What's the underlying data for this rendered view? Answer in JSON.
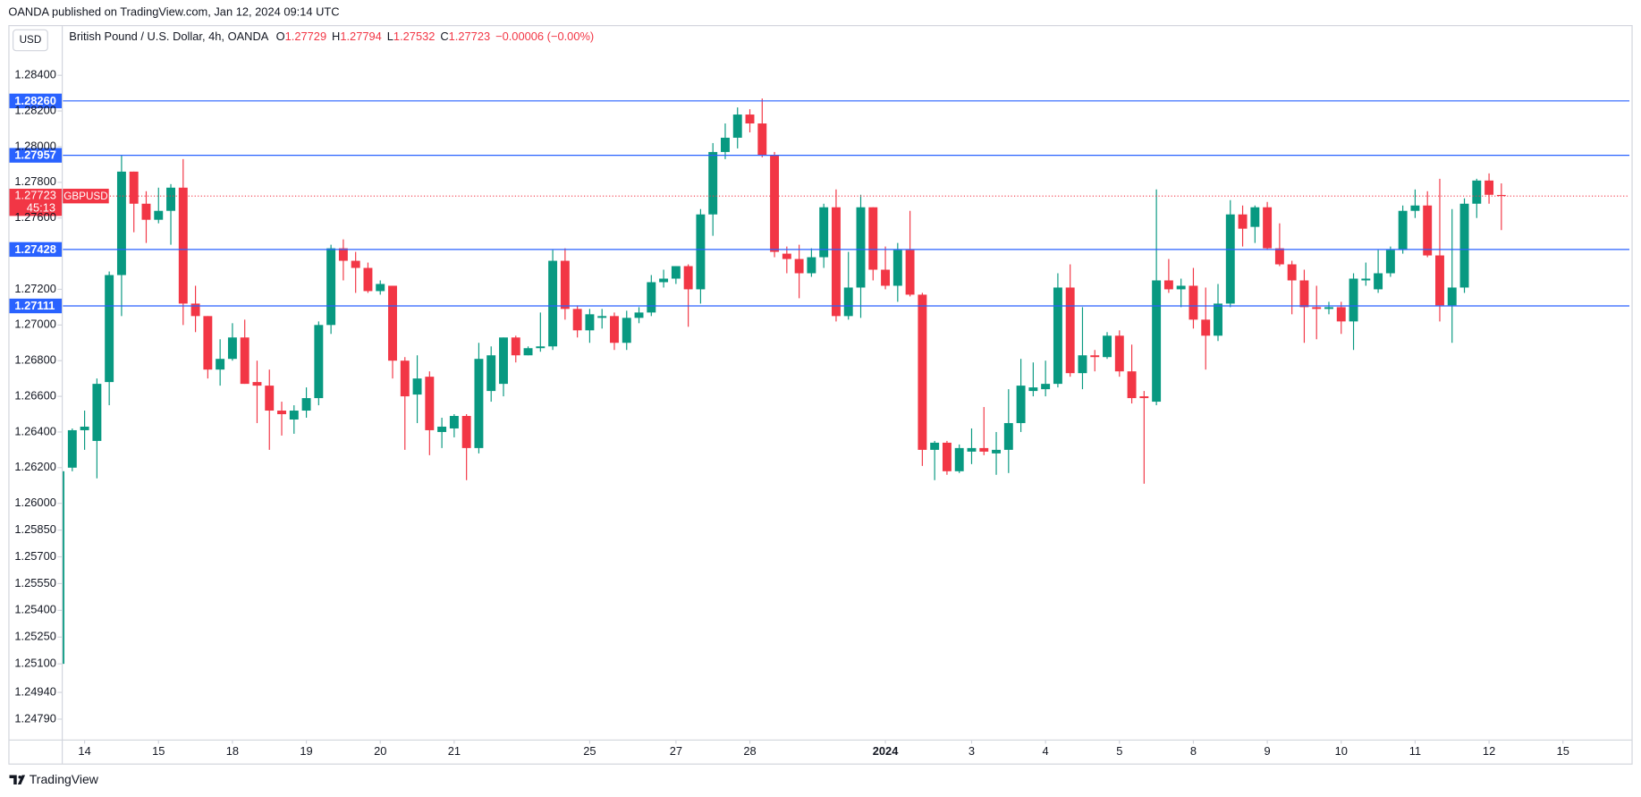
{
  "header": "OANDA published on TradingView.com, Jan 12, 2024 09:14 UTC",
  "footer": "TradingView",
  "chart_data": {
    "type": "candlestick",
    "currency": "USD",
    "symbol_description": "British Pound / U.S. Dollar, 4h, OANDA",
    "ohlc_legend": {
      "open_label": "O",
      "open": "1.27729",
      "high_label": "H",
      "high": "1.27794",
      "low_label": "L",
      "low": "1.27532",
      "close_label": "C",
      "close": "1.27723",
      "change": "−0.00006 (−0.00%)"
    },
    "up_color": "#089981",
    "down_color": "#f23645",
    "level_color": "#2962ff",
    "open": [
      1.251,
      1.262,
      1.2641,
      1.2635,
      1.2668,
      1.2728,
      1.2786,
      1.2768,
      1.2759,
      1.2764,
      1.2777,
      1.2712,
      1.2705,
      1.2675,
      1.2681,
      1.2693,
      1.2668,
      1.2666,
      1.2652,
      1.2647,
      1.2652,
      1.2659,
      1.27,
      1.2743,
      1.2736,
      1.2732,
      1.2719,
      1.2722,
      1.268,
      1.2661,
      1.2671,
      1.264,
      1.2642,
      1.2649,
      1.2631,
      1.2663,
      1.2667,
      1.2693,
      1.2683,
      1.2687,
      1.2688,
      1.2736,
      1.2709,
      1.2697,
      1.2704,
      1.2705,
      1.269,
      1.2704,
      1.2707,
      1.2724,
      1.2726,
      1.2733,
      1.272,
      1.2762,
      1.2797,
      1.2805,
      1.2818,
      1.2813,
      1.2795,
      1.274,
      1.2737,
      1.2729,
      1.2738,
      1.2766,
      1.2705,
      1.2721,
      1.2766,
      1.2731,
      1.2722,
      1.2742,
      1.2717,
      1.263,
      1.2634,
      1.2618,
      1.2629,
      1.2631,
      1.2628,
      1.263,
      1.2645,
      1.2663,
      1.2664,
      1.2667,
      1.2721,
      1.2673,
      1.2683,
      1.2682,
      1.2694,
      1.2674,
      1.266,
      1.2657,
      1.2725,
      1.272,
      1.2722,
      1.2703,
      1.2694,
      1.2712,
      1.2762,
      1.2755,
      1.2766,
      1.2743,
      1.2734,
      1.2725,
      1.271,
      1.2709,
      1.271,
      1.2702,
      1.2725,
      1.272,
      1.2729,
      1.2742,
      1.2764,
      1.2767,
      1.2739,
      1.2711,
      1.2721,
      1.2768,
      1.2781,
      1.27729
    ],
    "high": [
      1.2618,
      1.2642,
      1.2652,
      1.267,
      1.273,
      1.2795,
      1.2786,
      1.2775,
      1.2777,
      1.2779,
      1.2793,
      1.2722,
      1.2705,
      1.2692,
      1.2701,
      1.2703,
      1.268,
      1.2675,
      1.2657,
      1.2655,
      1.2665,
      1.2702,
      1.2745,
      1.2748,
      1.2741,
      1.2735,
      1.2725,
      1.2722,
      1.2682,
      1.2683,
      1.2674,
      1.2648,
      1.265,
      1.265,
      1.269,
      1.2688,
      1.2693,
      1.2694,
      1.2688,
      1.2707,
      1.2742,
      1.2743,
      1.2711,
      1.2709,
      1.2709,
      1.2707,
      1.2708,
      1.271,
      1.2728,
      1.2731,
      1.2733,
      1.2734,
      1.2765,
      1.2802,
      1.2813,
      1.2822,
      1.2821,
      1.2827,
      1.2797,
      1.2744,
      1.2745,
      1.2743,
      1.2768,
      1.2776,
      1.2741,
      1.2773,
      1.2766,
      1.2744,
      1.2746,
      1.2764,
      1.2718,
      1.2635,
      1.2635,
      1.2633,
      1.2642,
      1.2654,
      1.264,
      1.2664,
      1.2681,
      1.2679,
      1.268,
      1.2729,
      1.2734,
      1.271,
      1.2686,
      1.2696,
      1.2697,
      1.2689,
      1.2663,
      1.2776,
      1.2737,
      1.2726,
      1.2732,
      1.2721,
      1.2723,
      1.277,
      1.2767,
      1.2767,
      1.2769,
      1.2757,
      1.2736,
      1.2731,
      1.2722,
      1.2713,
      1.2713,
      1.2729,
      1.2735,
      1.2742,
      1.2744,
      1.2767,
      1.2776,
      1.2775,
      1.2782,
      1.2765,
      1.2771,
      1.2782,
      1.2785,
      1.27794
    ],
    "low": [
      1.251,
      1.2618,
      1.263,
      1.2614,
      1.2655,
      1.2705,
      1.2752,
      1.2746,
      1.2757,
      1.2745,
      1.27,
      1.2696,
      1.267,
      1.2666,
      1.268,
      1.2667,
      1.2645,
      1.263,
      1.2638,
      1.2639,
      1.2648,
      1.2655,
      1.2695,
      1.2725,
      1.2718,
      1.2718,
      1.2717,
      1.267,
      1.263,
      1.2645,
      1.2627,
      1.2631,
      1.2637,
      1.2613,
      1.2628,
      1.2657,
      1.266,
      1.2679,
      1.2683,
      1.2685,
      1.2686,
      1.2703,
      1.2693,
      1.269,
      1.2698,
      1.2686,
      1.2686,
      1.2701,
      1.2705,
      1.2721,
      1.2723,
      1.2699,
      1.2712,
      1.275,
      1.2793,
      1.2799,
      1.2808,
      1.2794,
      1.2738,
      1.2729,
      1.2715,
      1.2727,
      1.2732,
      1.2702,
      1.2703,
      1.2704,
      1.2725,
      1.272,
      1.2713,
      1.2716,
      1.2621,
      1.2613,
      1.2616,
      1.2617,
      1.2622,
      1.2627,
      1.2616,
      1.2617,
      1.264,
      1.266,
      1.266,
      1.2665,
      1.2671,
      1.2664,
      1.2674,
      1.2681,
      1.2671,
      1.2656,
      1.2611,
      1.2655,
      1.2718,
      1.271,
      1.2698,
      1.2675,
      1.2691,
      1.271,
      1.2744,
      1.2746,
      1.2742,
      1.2733,
      1.2706,
      1.269,
      1.2692,
      1.2706,
      1.2695,
      1.2686,
      1.2722,
      1.2718,
      1.2727,
      1.274,
      1.276,
      1.2738,
      1.2702,
      1.269,
      1.2718,
      1.276,
      1.2768,
      1.27532
    ],
    "close": [
      1.2618,
      1.2641,
      1.2643,
      1.2667,
      1.2728,
      1.2786,
      1.2768,
      1.2759,
      1.2764,
      1.2777,
      1.2712,
      1.2705,
      1.2675,
      1.2681,
      1.2693,
      1.2667,
      1.2666,
      1.2652,
      1.265,
      1.2652,
      1.2659,
      1.27,
      1.2743,
      1.2736,
      1.2732,
      1.2719,
      1.2723,
      1.268,
      1.266,
      1.267,
      1.2641,
      1.2643,
      1.2649,
      1.2631,
      1.2681,
      1.2683,
      1.2693,
      1.2683,
      1.2687,
      1.2688,
      1.2736,
      1.2709,
      1.2697,
      1.2706,
      1.2705,
      1.269,
      1.2704,
      1.2707,
      1.2724,
      1.2726,
      1.2733,
      1.272,
      1.2762,
      1.2797,
      1.2805,
      1.2818,
      1.2813,
      1.2795,
      1.2741,
      1.2737,
      1.2729,
      1.2738,
      1.2766,
      1.2705,
      1.2721,
      1.2766,
      1.2731,
      1.2722,
      1.2742,
      1.2717,
      1.263,
      1.2634,
      1.2618,
      1.2631,
      1.2631,
      1.2629,
      1.263,
      1.2645,
      1.2666,
      1.2665,
      1.2667,
      1.2721,
      1.2673,
      1.2683,
      1.2682,
      1.2694,
      1.2674,
      1.2659,
      1.2659,
      1.2725,
      1.272,
      1.2722,
      1.2703,
      1.2694,
      1.2712,
      1.2762,
      1.2754,
      1.2766,
      1.2743,
      1.2734,
      1.2725,
      1.271,
      1.2709,
      1.271,
      1.2702,
      1.2726,
      1.2726,
      1.2729,
      1.2742,
      1.2764,
      1.2767,
      1.2739,
      1.2711,
      1.2721,
      1.2768,
      1.2781,
      1.2773,
      1.27723
    ],
    "xlim": [
      0.23,
      127.4
    ],
    "xticks": [
      {
        "value": 2,
        "label": "14"
      },
      {
        "value": 8,
        "label": "15"
      },
      {
        "value": 14,
        "label": "18"
      },
      {
        "value": 20,
        "label": "19"
      },
      {
        "value": 26,
        "label": "20"
      },
      {
        "value": 32,
        "label": "21"
      },
      {
        "value": 43,
        "label": "25"
      },
      {
        "value": 50,
        "label": "27"
      },
      {
        "value": 56,
        "label": "28"
      },
      {
        "value": 67,
        "label": "2024"
      },
      {
        "value": 74,
        "label": "3"
      },
      {
        "value": 80,
        "label": "4"
      },
      {
        "value": 86,
        "label": "5"
      },
      {
        "value": 92,
        "label": "8"
      },
      {
        "value": 98,
        "label": "9"
      },
      {
        "value": 104,
        "label": "10"
      },
      {
        "value": 110,
        "label": "11"
      },
      {
        "value": 116,
        "label": "12"
      },
      {
        "value": 122,
        "label": "15"
      }
    ],
    "ylim": [
      1.24676,
      1.28529
    ],
    "yticks": [
      {
        "value": 1.284,
        "label": "1.28400"
      },
      {
        "value": 1.282,
        "label": "1.28200"
      },
      {
        "value": 1.28,
        "label": "1.28000"
      },
      {
        "value": 1.278,
        "label": "1.27800"
      },
      {
        "value": 1.276,
        "label": "1.27600"
      },
      {
        "value": 1.272,
        "label": "1.27200"
      },
      {
        "value": 1.27,
        "label": "1.27000"
      },
      {
        "value": 1.268,
        "label": "1.26800"
      },
      {
        "value": 1.266,
        "label": "1.26600"
      },
      {
        "value": 1.264,
        "label": "1.26400"
      },
      {
        "value": 1.262,
        "label": "1.26200"
      },
      {
        "value": 1.26,
        "label": "1.26000"
      },
      {
        "value": 1.2585,
        "label": "1.25850"
      },
      {
        "value": 1.257,
        "label": "1.25700"
      },
      {
        "value": 1.2555,
        "label": "1.25550"
      },
      {
        "value": 1.254,
        "label": "1.25400"
      },
      {
        "value": 1.2525,
        "label": "1.25250"
      },
      {
        "value": 1.251,
        "label": "1.25100"
      },
      {
        "value": 1.2494,
        "label": "1.24940"
      },
      {
        "value": 1.2479,
        "label": "1.24790"
      }
    ],
    "levels": [
      {
        "value": 1.2826,
        "label": "1.28260"
      },
      {
        "value": 1.27957,
        "label": "1.27957"
      },
      {
        "value": 1.27428,
        "label": "1.27428"
      },
      {
        "value": 1.27111,
        "label": "1.27111"
      }
    ],
    "last_price": {
      "value": 1.27723,
      "label": "1.27723",
      "symbol": "GBPUSD",
      "countdown": "45:13"
    }
  }
}
